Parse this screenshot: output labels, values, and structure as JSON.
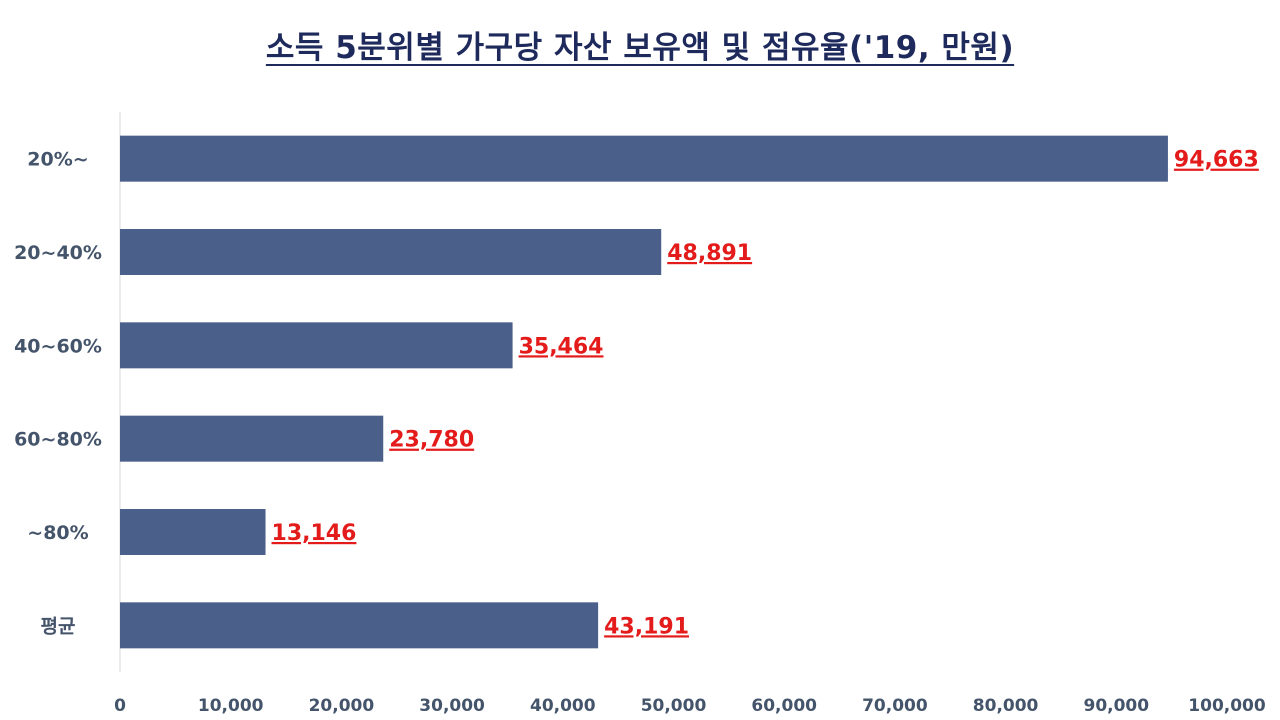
{
  "chart_data": {
    "type": "bar",
    "orientation": "horizontal",
    "title": "소득 5분위별 가구당 자산 보유액 및 점유율('19, 만원)",
    "categories": [
      "20%~",
      "20~40%",
      "40~60%",
      "60~80%",
      "~80%",
      "평균"
    ],
    "values": [
      94663,
      48891,
      35464,
      23780,
      13146,
      43191
    ],
    "value_labels": [
      "94,663",
      "48,891",
      "35,464",
      "23,780",
      "13,146",
      "43,191"
    ],
    "xlim": [
      0,
      100000
    ],
    "x_ticks": [
      0,
      10000,
      20000,
      30000,
      40000,
      50000,
      60000,
      70000,
      80000,
      90000,
      100000
    ],
    "x_tick_labels": [
      "0",
      "10,000",
      "20,000",
      "30,000",
      "40,000",
      "50,000",
      "60,000",
      "70,000",
      "80,000",
      "90,000",
      "100,000"
    ],
    "xlabel": "",
    "ylabel": "",
    "grid": false,
    "legend": "none",
    "colors": {
      "bar": "#4a5f8a",
      "value_label": "#e41b1b",
      "title": "#1f2a5c",
      "axis_text": "#44546a",
      "axis_line": "#d9d9d9"
    }
  }
}
